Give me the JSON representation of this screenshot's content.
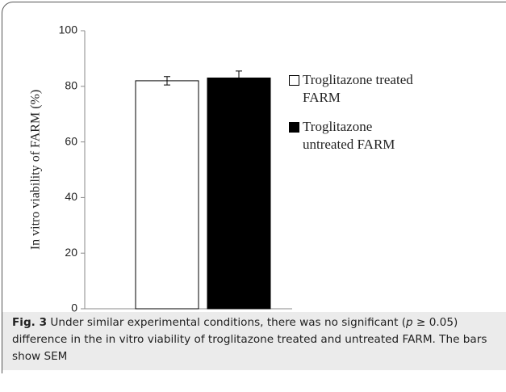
{
  "chart_data": {
    "type": "bar",
    "ylabel": "In vitro viability of FARM (%)",
    "categories": [
      null
    ],
    "series": [
      {
        "name": "Troglitazone treated FARM",
        "color": "#ffffff",
        "values": [
          82
        ],
        "errors": [
          1.5
        ]
      },
      {
        "name": "Troglitazone untreated FARM",
        "color": "#000000",
        "values": [
          83
        ],
        "errors": [
          2.5
        ]
      }
    ],
    "ylim": [
      0,
      100
    ],
    "yticks": [
      0,
      20,
      40,
      60,
      80,
      100
    ],
    "grid": false,
    "legend": "right"
  },
  "caption": {
    "label": "Fig. 3",
    "text_before": "Under similar experimental conditions, there was no significant (",
    "italic": "p",
    "text_after": " ≥ 0.05) difference in the in vitro viability of troglitazone treated and untreated FARM. The bars show SEM"
  }
}
